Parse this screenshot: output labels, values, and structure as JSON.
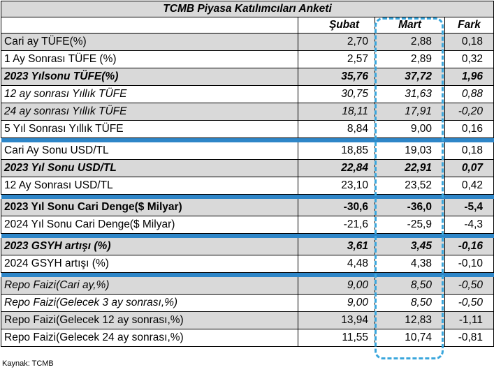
{
  "title": "TCMB Piyasa Katılımcıları Anketi",
  "columns": {
    "prev": "Şubat",
    "curr": "Mart",
    "diff": "Fark"
  },
  "rows": [
    {
      "label": "Cari ay TÜFE(%)",
      "prev": "2,70",
      "curr": "2,88",
      "diff": "0,18"
    },
    {
      "label": "1 Ay Sonrası TÜFE (%)",
      "prev": "2,57",
      "curr": "2,89",
      "diff": "0,32"
    },
    {
      "label": "2023 Yılsonu TÜFE(%)",
      "prev": "35,76",
      "curr": "37,72",
      "diff": "1,96"
    },
    {
      "label": "12 ay sonrası Yıllık TÜFE",
      "prev": "30,75",
      "curr": "31,63",
      "diff": "0,88"
    },
    {
      "label": "24 ay sonrası Yıllık TÜFE",
      "prev": "18,11",
      "curr": "17,91",
      "diff": "-0,20"
    },
    {
      "label": "5 Yıl Sonrası Yıllık TÜFE",
      "prev": "8,84",
      "curr": "9,00",
      "diff": "0,16"
    },
    {
      "label": "Cari Ay Sonu USD/TL",
      "prev": "18,85",
      "curr": "19,03",
      "diff": "0,18"
    },
    {
      "label": "2023 Yıl Sonu USD/TL",
      "prev": "22,84",
      "curr": "22,91",
      "diff": "0,07"
    },
    {
      "label": "12 Ay Sonrası USD/TL",
      "prev": "23,10",
      "curr": "23,52",
      "diff": "0,42"
    },
    {
      "label": "2023 Yıl Sonu Cari Denge($ Milyar)",
      "prev": "-30,6",
      "curr": "-36,0",
      "diff": "-5,4"
    },
    {
      "label": "2024 Yıl Sonu Cari Denge($ Milyar)",
      "prev": "-21,6",
      "curr": "-25,9",
      "diff": "-4,3"
    },
    {
      "label": "2023 GSYH artışı (%)",
      "prev": "3,61",
      "curr": "3,45",
      "diff": "-0,16"
    },
    {
      "label": "2024 GSYH artışı (%)",
      "prev": "4,48",
      "curr": "4,38",
      "diff": "-0,10"
    },
    {
      "label": "Repo Faizi(Cari ay,%)",
      "prev": "9,00",
      "curr": "8,50",
      "diff": "-0,50"
    },
    {
      "label": "Repo Faizi(Gelecek 3 ay sonrası,%)",
      "prev": "9,00",
      "curr": "8,50",
      "diff": "-0,50"
    },
    {
      "label": "Repo Faizi(Gelecek 12 ay sonrası,%)",
      "prev": "13,94",
      "curr": "12,83",
      "diff": "-1,11"
    },
    {
      "label": "Repo Faizi(Gelecek 24 ay sonrası,%)",
      "prev": "11,55",
      "curr": "10,74",
      "diff": "-0,81"
    }
  ],
  "source": "Kaynak: TCMB",
  "colors": {
    "row_gray": "#d9d9d9",
    "separator": "#2e86c8",
    "highlight_dash": "#3aa6dc"
  }
}
